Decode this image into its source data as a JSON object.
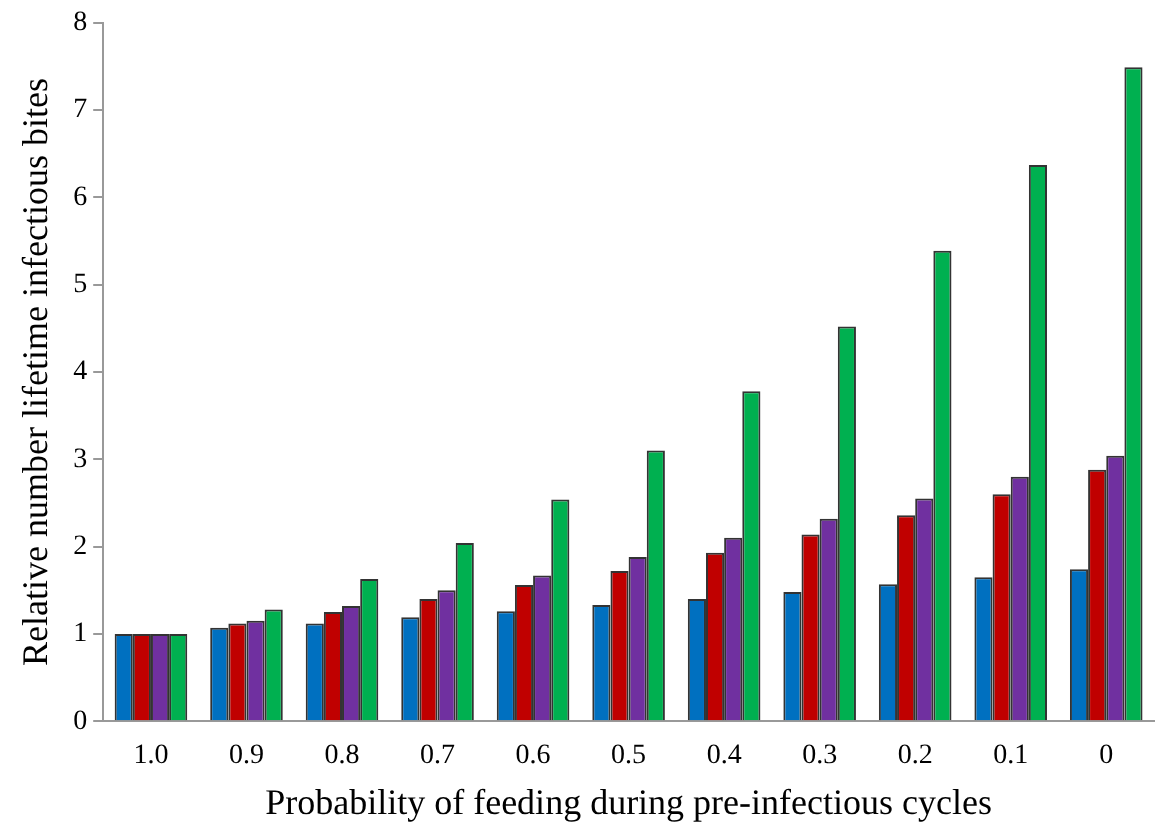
{
  "chart_data": {
    "type": "bar",
    "xlabel": "Probability of feeding during pre-infectious cycles",
    "ylabel": "Relative number lifetime infectious bites",
    "categories": [
      "1.0",
      "0.9",
      "0.8",
      "0.7",
      "0.6",
      "0.5",
      "0.4",
      "0.3",
      "0.2",
      "0.1",
      "0"
    ],
    "series": [
      {
        "color": "#0070c0",
        "values": [
          1,
          1.07,
          1.12,
          1.19,
          1.26,
          1.33,
          1.4,
          1.48,
          1.57,
          1.65,
          1.74
        ]
      },
      {
        "color": "#c00000",
        "values": [
          1,
          1.12,
          1.25,
          1.4,
          1.56,
          1.72,
          1.93,
          2.14,
          2.36,
          2.6,
          2.88
        ]
      },
      {
        "color": "#7030a0",
        "values": [
          1,
          1.15,
          1.32,
          1.5,
          1.67,
          1.88,
          2.1,
          2.32,
          2.55,
          2.8,
          3.04
        ]
      },
      {
        "color": "#00b050",
        "values": [
          1,
          1.28,
          1.63,
          2.04,
          2.54,
          3.1,
          3.78,
          4.52,
          5.39,
          6.37,
          7.49
        ]
      }
    ],
    "ylim": [
      0,
      8
    ],
    "yticks": [
      0,
      1,
      2,
      3,
      4,
      5,
      6,
      7,
      8
    ],
    "grid": false,
    "legend": false
  }
}
